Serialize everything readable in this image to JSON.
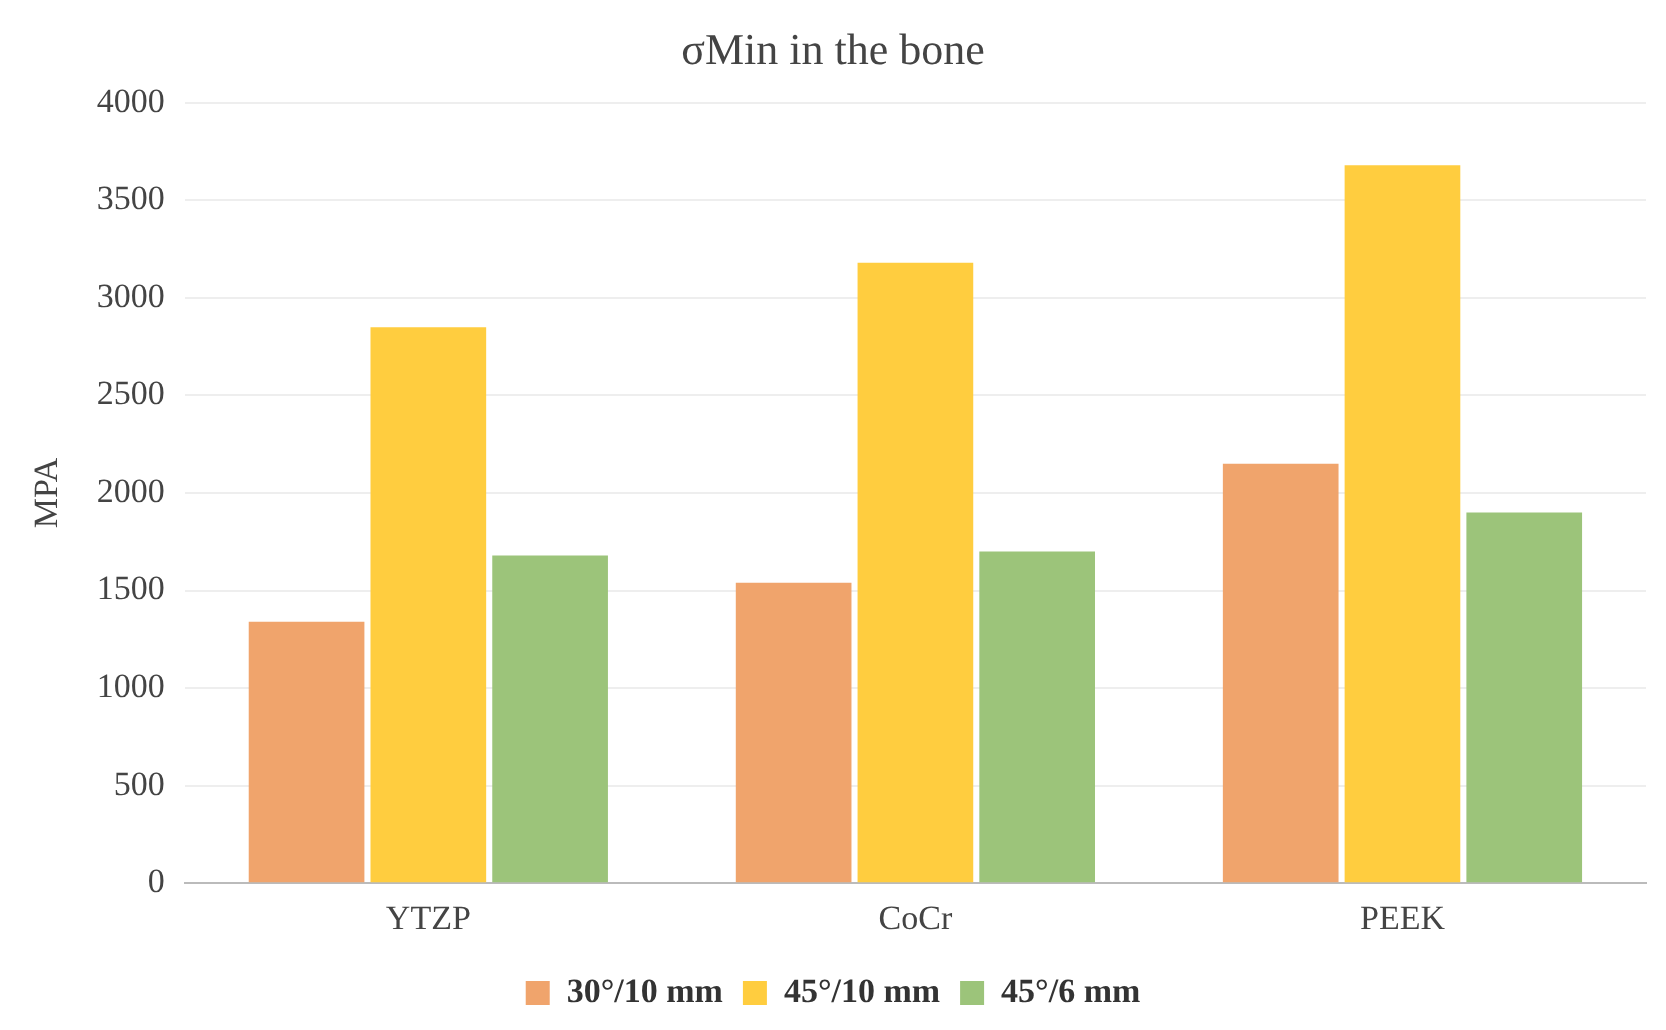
{
  "chart_data": {
    "type": "bar",
    "title": "σMin in the bone",
    "ylabel": "MPA",
    "categories": [
      "YTZP",
      "CoCr",
      "PEEK"
    ],
    "series": [
      {
        "name": "30°/10 mm",
        "color": "#f0a46c",
        "values": [
          1340,
          1540,
          2150
        ]
      },
      {
        "name": "45°/10 mm",
        "color": "#ffcd3f",
        "values": [
          2850,
          3180,
          3680
        ]
      },
      {
        "name": "45°/6 mm",
        "color": "#9cc47a",
        "values": [
          1680,
          1700,
          1900
        ]
      }
    ],
    "ylim": [
      0,
      4000
    ],
    "yticks": [
      0,
      500,
      1000,
      1500,
      2000,
      2500,
      3000,
      3500,
      4000
    ],
    "grid": "y",
    "legend": "bottom"
  }
}
